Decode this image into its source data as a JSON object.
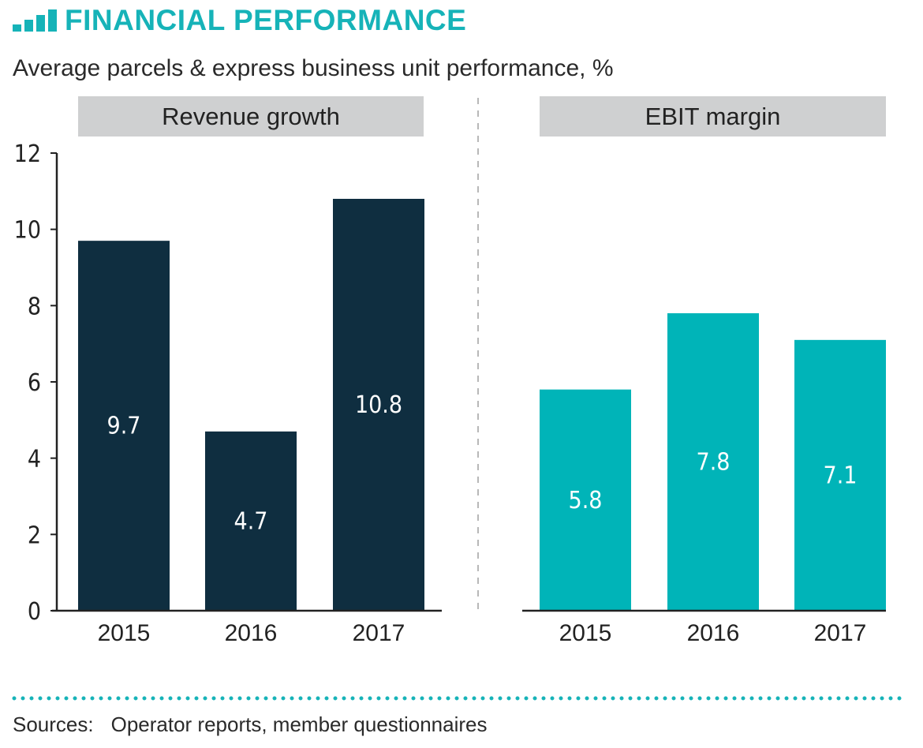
{
  "header": {
    "title": "FINANCIAL PERFORMANCE",
    "icon": "bar-chart-icon",
    "accent_color": "#16b3b8"
  },
  "subtitle": "Average parcels & express business unit performance, %",
  "sources": {
    "label": "Sources:",
    "text": "Operator reports, member questionnaires"
  },
  "chart_data": [
    {
      "type": "bar",
      "title": "Revenue growth",
      "categories": [
        "2015",
        "2016",
        "2017"
      ],
      "values": [
        9.7,
        4.7,
        10.8
      ],
      "value_labels": [
        "9.7",
        "4.7",
        "10.8"
      ],
      "color": "#0f2e40",
      "ylim": [
        0,
        12
      ],
      "yticks": [
        "0",
        "2",
        "4",
        "6",
        "8",
        "10",
        "12"
      ],
      "grid": false
    },
    {
      "type": "bar",
      "title": "EBIT margin",
      "categories": [
        "2015",
        "2016",
        "2017"
      ],
      "values": [
        5.8,
        7.8,
        7.1
      ],
      "value_labels": [
        "5.8",
        "7.8",
        "7.1"
      ],
      "color": "#00b4b8",
      "ylim": [
        0,
        12
      ],
      "grid": false
    }
  ]
}
